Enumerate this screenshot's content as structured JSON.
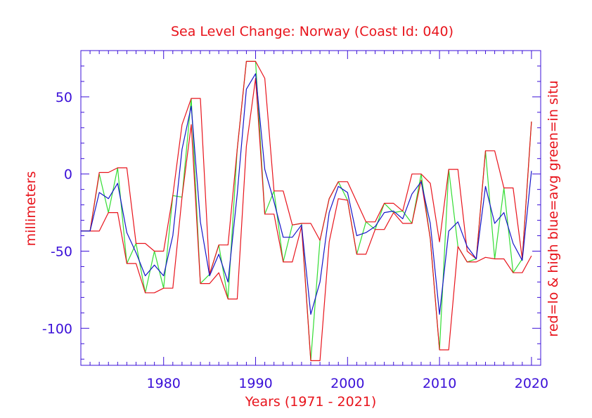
{
  "chart_data": {
    "type": "line",
    "title": "Sea Level Change: Norway (Coast Id: 040)",
    "xlabel": "Years (1971 - 2021)",
    "ylabel": "millimeters",
    "y2label": "red=lo & high  blue=avg  green=in situ",
    "xlim": [
      1971,
      2021
    ],
    "ylim": [
      -124,
      80
    ],
    "xticks": [
      1980,
      1990,
      2000,
      2010,
      2020
    ],
    "yticks": [
      50,
      0,
      -50,
      -100
    ],
    "xtick_labels": [
      "1980",
      "1990",
      "2000",
      "2010",
      "2020"
    ],
    "ytick_labels": [
      "50",
      "0",
      "-50",
      "-100"
    ],
    "colors": {
      "frame": "#3b10d8",
      "low": "#e8141c",
      "high": "#e8141c",
      "avg": "#1414c8",
      "insitu": "#33dd33",
      "title": "#e8141c",
      "tick": "#3b10d8"
    },
    "series": [
      {
        "name": "high",
        "color": "#e8141c",
        "points": [
          [
            1971,
            -37
          ],
          [
            1972,
            -37
          ],
          [
            1973,
            1
          ],
          [
            1974,
            1
          ],
          [
            1975,
            4
          ],
          [
            1976,
            4
          ],
          [
            1977,
            -45
          ],
          [
            1978,
            -45
          ],
          [
            1979,
            -50
          ],
          [
            1980,
            -50
          ],
          [
            1981,
            -14
          ],
          [
            1982,
            32
          ],
          [
            1983,
            49
          ],
          [
            1984,
            49
          ],
          [
            1985,
            -65
          ],
          [
            1986,
            -46
          ],
          [
            1987,
            -46
          ],
          [
            1988,
            16
          ],
          [
            1989,
            73
          ],
          [
            1990,
            73
          ],
          [
            1991,
            62
          ],
          [
            1992,
            -11
          ],
          [
            1993,
            -11
          ],
          [
            1994,
            -33
          ],
          [
            1995,
            -32
          ],
          [
            1996,
            -32
          ],
          [
            1997,
            -43
          ],
          [
            1998,
            -16
          ],
          [
            1999,
            -5
          ],
          [
            2000,
            -5
          ],
          [
            2001,
            -18
          ],
          [
            2002,
            -31
          ],
          [
            2003,
            -31
          ],
          [
            2004,
            -19
          ],
          [
            2005,
            -19
          ],
          [
            2006,
            -24
          ],
          [
            2007,
            0
          ],
          [
            2008,
            0
          ],
          [
            2009,
            -6
          ],
          [
            2010,
            -44
          ],
          [
            2011,
            3
          ],
          [
            2012,
            3
          ],
          [
            2013,
            -50
          ],
          [
            2014,
            -55
          ],
          [
            2015,
            15
          ],
          [
            2016,
            15
          ],
          [
            2017,
            -9
          ],
          [
            2018,
            -9
          ],
          [
            2019,
            -55
          ],
          [
            2020,
            34
          ]
        ]
      },
      {
        "name": "low",
        "color": "#e8141c",
        "points": [
          [
            1971,
            -37
          ],
          [
            1972,
            -37
          ],
          [
            1973,
            -37
          ],
          [
            1974,
            -25
          ],
          [
            1975,
            -25
          ],
          [
            1976,
            -58
          ],
          [
            1977,
            -58
          ],
          [
            1978,
            -77
          ],
          [
            1979,
            -77
          ],
          [
            1980,
            -74
          ],
          [
            1981,
            -74
          ],
          [
            1982,
            -15
          ],
          [
            1983,
            32
          ],
          [
            1984,
            -71
          ],
          [
            1985,
            -71
          ],
          [
            1986,
            -64
          ],
          [
            1987,
            -81
          ],
          [
            1988,
            -81
          ],
          [
            1989,
            18
          ],
          [
            1990,
            62
          ],
          [
            1991,
            -26
          ],
          [
            1992,
            -26
          ],
          [
            1993,
            -57
          ],
          [
            1994,
            -57
          ],
          [
            1995,
            -34
          ],
          [
            1996,
            -121
          ],
          [
            1997,
            -121
          ],
          [
            1998,
            -44
          ],
          [
            1999,
            -16
          ],
          [
            2000,
            -17
          ],
          [
            2001,
            -52
          ],
          [
            2002,
            -52
          ],
          [
            2003,
            -36
          ],
          [
            2004,
            -36
          ],
          [
            2005,
            -25
          ],
          [
            2006,
            -32
          ],
          [
            2007,
            -32
          ],
          [
            2008,
            -4
          ],
          [
            2009,
            -42
          ],
          [
            2010,
            -114
          ],
          [
            2011,
            -114
          ],
          [
            2012,
            -47
          ],
          [
            2013,
            -57
          ],
          [
            2014,
            -57
          ],
          [
            2015,
            -54
          ],
          [
            2016,
            -55
          ],
          [
            2017,
            -55
          ],
          [
            2018,
            -64
          ],
          [
            2019,
            -64
          ],
          [
            2020,
            -53
          ]
        ]
      },
      {
        "name": "avg",
        "color": "#1414c8",
        "points": [
          [
            1971,
            -37
          ],
          [
            1972,
            -37
          ],
          [
            1973,
            -12
          ],
          [
            1974,
            -16
          ],
          [
            1975,
            -6
          ],
          [
            1976,
            -38
          ],
          [
            1977,
            -51
          ],
          [
            1978,
            -66
          ],
          [
            1979,
            -59
          ],
          [
            1980,
            -66
          ],
          [
            1981,
            -40
          ],
          [
            1982,
            16
          ],
          [
            1983,
            44
          ],
          [
            1984,
            -31
          ],
          [
            1985,
            -66
          ],
          [
            1986,
            -52
          ],
          [
            1987,
            -70
          ],
          [
            1988,
            -13
          ],
          [
            1989,
            55
          ],
          [
            1990,
            65
          ],
          [
            1991,
            3
          ],
          [
            1992,
            -18
          ],
          [
            1993,
            -41
          ],
          [
            1994,
            -41
          ],
          [
            1995,
            -33
          ],
          [
            1996,
            -91
          ],
          [
            1997,
            -70
          ],
          [
            1998,
            -25
          ],
          [
            1999,
            -8
          ],
          [
            2000,
            -12
          ],
          [
            2001,
            -40
          ],
          [
            2002,
            -38
          ],
          [
            2003,
            -34
          ],
          [
            2004,
            -25
          ],
          [
            2005,
            -24
          ],
          [
            2006,
            -29
          ],
          [
            2007,
            -13
          ],
          [
            2008,
            -5
          ],
          [
            2009,
            -32
          ],
          [
            2010,
            -91
          ],
          [
            2011,
            -37
          ],
          [
            2012,
            -31
          ],
          [
            2013,
            -47
          ],
          [
            2014,
            -55
          ],
          [
            2015,
            -8
          ],
          [
            2016,
            -32
          ],
          [
            2017,
            -25
          ],
          [
            2018,
            -45
          ],
          [
            2019,
            -56
          ],
          [
            2020,
            2
          ]
        ]
      },
      {
        "name": "in situ",
        "color": "#33dd33",
        "points": [
          [
            1971,
            -37
          ],
          [
            1972,
            -37
          ],
          [
            1973,
            0
          ],
          [
            1974,
            -25
          ],
          [
            1975,
            4
          ],
          [
            1976,
            -58
          ],
          [
            1977,
            -45
          ],
          [
            1978,
            -77
          ],
          [
            1979,
            -50
          ],
          [
            1980,
            -74
          ],
          [
            1981,
            -14
          ],
          [
            1982,
            -15
          ],
          [
            1983,
            49
          ],
          [
            1984,
            -71
          ],
          [
            1985,
            -65
          ],
          [
            1986,
            -46
          ],
          [
            1987,
            -81
          ],
          [
            1988,
            16
          ],
          [
            1989,
            73
          ],
          [
            1990,
            73
          ],
          [
            1991,
            -26
          ],
          [
            1992,
            -11
          ],
          [
            1993,
            -57
          ],
          [
            1994,
            -33
          ],
          [
            1995,
            -32
          ],
          [
            1996,
            -121
          ],
          [
            1997,
            -43
          ],
          [
            1998,
            -16
          ],
          [
            1999,
            -5
          ],
          [
            2000,
            -17
          ],
          [
            2001,
            -52
          ],
          [
            2002,
            -31
          ],
          [
            2003,
            -36
          ],
          [
            2004,
            -19
          ],
          [
            2005,
            -25
          ],
          [
            2006,
            -24
          ],
          [
            2007,
            -32
          ],
          [
            2008,
            0
          ],
          [
            2009,
            -42
          ],
          [
            2010,
            -114
          ],
          [
            2011,
            3
          ],
          [
            2012,
            -47
          ],
          [
            2013,
            -57
          ],
          [
            2014,
            -55
          ],
          [
            2015,
            15
          ],
          [
            2016,
            -55
          ],
          [
            2017,
            -9
          ],
          [
            2018,
            -64
          ],
          [
            2019,
            -55
          ],
          [
            2020,
            34
          ]
        ]
      }
    ]
  }
}
